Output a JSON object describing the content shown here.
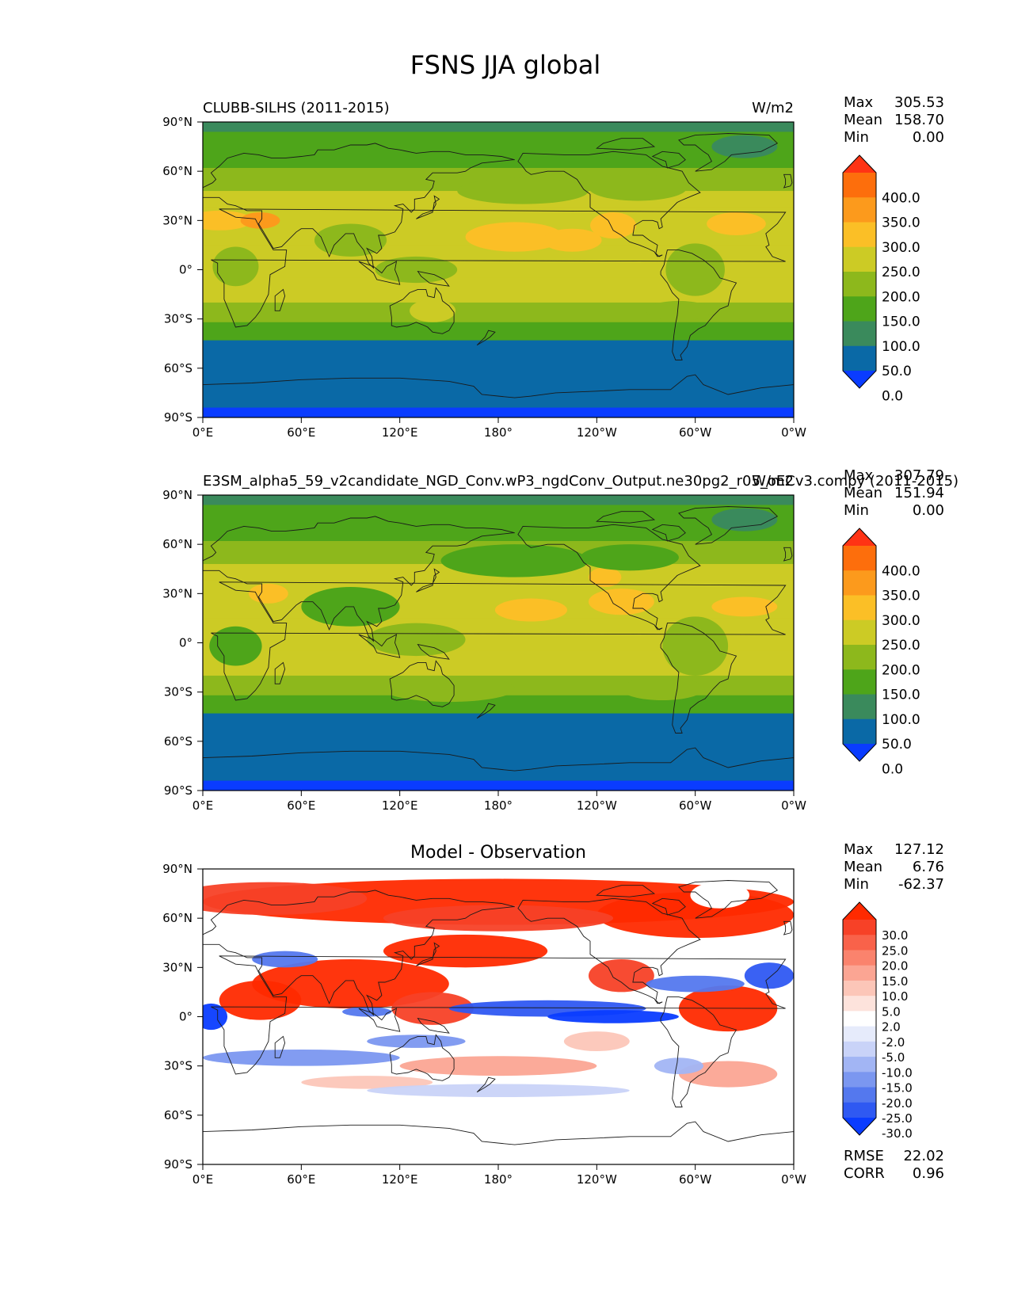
{
  "figure": {
    "title": "FSNS JJA global"
  },
  "axes": {
    "lat_ticks": [
      "90°N",
      "60°N",
      "30°N",
      "0°",
      "30°S",
      "60°S",
      "90°S"
    ],
    "lon_ticks": [
      "0°E",
      "60°E",
      "120°E",
      "180°",
      "120°W",
      "60°W",
      "0°W"
    ]
  },
  "colors": {
    "abs": [
      "#0a3cff",
      "#0a69a6",
      "#3a8a5c",
      "#4ea51a",
      "#8db81c",
      "#cccb25",
      "#fbbf26",
      "#fc9a1c",
      "#fd6e0c",
      "#ff3314"
    ],
    "diff": [
      "#0a3cff",
      "#2f59f2",
      "#5478ee",
      "#7b97f0",
      "#a2b5f4",
      "#c9d3f8",
      "#e6ebfb",
      "#ffffff",
      "#fde3dc",
      "#fcc6b8",
      "#fba593",
      "#fa836d",
      "#f9624a",
      "#f74127",
      "#ff2a00"
    ],
    "land_outline": "#1a1a1a"
  },
  "panels": {
    "test": {
      "left_title": "CLUBB-SILHS (2011-2015)",
      "right_title": "W/m2",
      "stats": {
        "max_label": "Max",
        "max": "305.53",
        "mean_label": "Mean",
        "mean": "158.70",
        "min_label": "Min",
        "min": "0.00"
      },
      "colorbar_labels": [
        "400.0",
        "350.0",
        "300.0",
        "250.0",
        "200.0",
        "150.0",
        "100.0",
        "50.0",
        "0.0"
      ]
    },
    "ref": {
      "left_title": "E3SM_alpha5_59_v2candidate_NGD_Conv.wP3_ngdConv_Output.ne30pg2_r05_oECv3.compy (2011-2015)",
      "right_title": "W/m2",
      "stats": {
        "max_label": "Max",
        "max": "307.79",
        "mean_label": "Mean",
        "mean": "151.94",
        "min_label": "Min",
        "min": "0.00"
      },
      "colorbar_labels": [
        "400.0",
        "350.0",
        "300.0",
        "250.0",
        "200.0",
        "150.0",
        "100.0",
        "50.0",
        "0.0"
      ]
    },
    "diff": {
      "center_title": "Model - Observation",
      "stats": {
        "max_label": "Max",
        "max": "127.12",
        "mean_label": "Mean",
        "mean": "6.76",
        "min_label": "Min",
        "min": "-62.37"
      },
      "colorbar_labels": [
        "30.0",
        "25.0",
        "20.0",
        "15.0",
        "10.0",
        "5.0",
        "2.0",
        "-2.0",
        "-5.0",
        "-10.0",
        "-15.0",
        "-20.0",
        "-25.0",
        "-30.0"
      ],
      "metrics": {
        "rmse_label": "RMSE",
        "rmse": "22.02",
        "corr_label": "CORR",
        "corr": "0.96"
      }
    }
  },
  "chart_data": [
    {
      "type": "heatmap",
      "title": "CLUBB-SILHS (2011-2015)",
      "units": "W/m2",
      "xlabel": "",
      "ylabel": "",
      "x_ticks": [
        "0°E",
        "60°E",
        "120°E",
        "180°",
        "120°W",
        "60°W",
        "0°W"
      ],
      "y_ticks": [
        "90°N",
        "60°N",
        "30°N",
        "0°",
        "30°S",
        "60°S",
        "90°S"
      ],
      "xlim": [
        0,
        360
      ],
      "ylim": [
        -90,
        90
      ],
      "levels": [
        0,
        50,
        100,
        150,
        200,
        250,
        300,
        350,
        400
      ],
      "stats": {
        "max": 305.53,
        "mean": 158.7,
        "min": 0.0
      }
    },
    {
      "type": "heatmap",
      "title": "E3SM_alpha5_59_v2candidate_NGD_Conv.wP3_ngdConv_Output.ne30pg2_r05_oECv3.compy (2011-2015)",
      "units": "W/m2",
      "x_ticks": [
        "0°E",
        "60°E",
        "120°E",
        "180°",
        "120°W",
        "60°W",
        "0°W"
      ],
      "y_ticks": [
        "90°N",
        "60°N",
        "30°N",
        "0°",
        "30°S",
        "60°S",
        "90°S"
      ],
      "xlim": [
        0,
        360
      ],
      "ylim": [
        -90,
        90
      ],
      "levels": [
        0,
        50,
        100,
        150,
        200,
        250,
        300,
        350,
        400
      ],
      "stats": {
        "max": 307.79,
        "mean": 151.94,
        "min": 0.0
      }
    },
    {
      "type": "heatmap",
      "title": "Model - Observation",
      "x_ticks": [
        "0°E",
        "60°E",
        "120°E",
        "180°",
        "120°W",
        "60°W",
        "0°W"
      ],
      "y_ticks": [
        "90°N",
        "60°N",
        "30°N",
        "0°",
        "30°S",
        "60°S",
        "90°S"
      ],
      "xlim": [
        0,
        360
      ],
      "ylim": [
        -90,
        90
      ],
      "levels": [
        -30,
        -25,
        -20,
        -15,
        -10,
        -5,
        -2,
        2,
        5,
        10,
        15,
        20,
        25,
        30
      ],
      "stats": {
        "max": 127.12,
        "mean": 6.76,
        "min": -62.37
      },
      "rmse": 22.02,
      "corr": 0.96
    }
  ]
}
